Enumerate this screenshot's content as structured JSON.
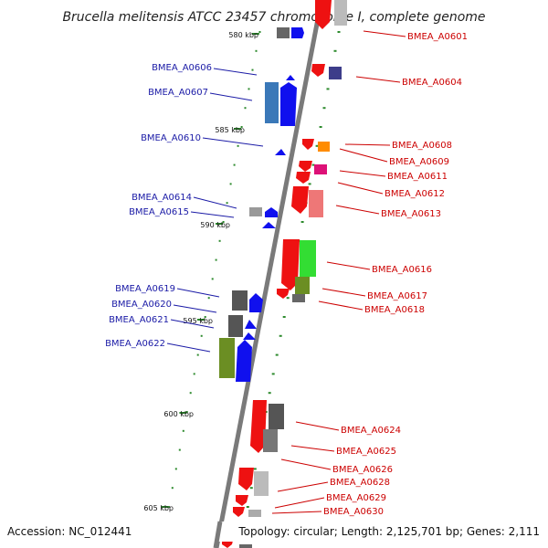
{
  "title": "Brucella melitensis ATCC 23457 chromosome I, complete genome",
  "footer": {
    "accession": "Accession: NC_012441",
    "summary": "Topology: circular; Length: 2,125,701 bp; Genes: 2,111"
  },
  "colors": {
    "left_label": "#1a1aa6",
    "right_label": "#cc0000",
    "backbone": "#7a7a7a",
    "tick": "#2e8b2e"
  },
  "ticks": [
    "580 kbp",
    "585 kbp",
    "590 kbp",
    "595 kbp",
    "600 kbp",
    "605 kbp"
  ],
  "labels_left": [
    "BMEA_A0606",
    "BMEA_A0607",
    "BMEA_A0610",
    "BMEA_A0614",
    "BMEA_A0615",
    "BMEA_A0619",
    "BMEA_A0620",
    "BMEA_A0621",
    "BMEA_A0622"
  ],
  "labels_right": [
    "BMEA_A0601",
    "BMEA_A0604",
    "BMEA_A0608",
    "BMEA_A0609",
    "BMEA_A0611",
    "BMEA_A0612",
    "BMEA_A0613",
    "BMEA_A0616",
    "BMEA_A0617",
    "BMEA_A0618",
    "BMEA_A0624",
    "BMEA_A0625",
    "BMEA_A0626",
    "BMEA_A0628",
    "BMEA_A0629",
    "BMEA_A0630"
  ]
}
